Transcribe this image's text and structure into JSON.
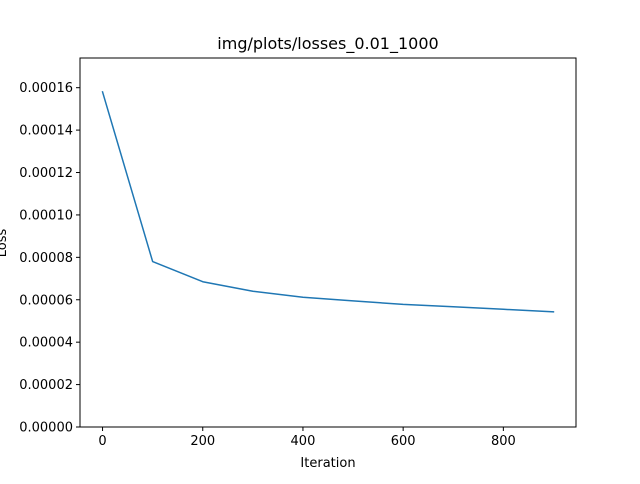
{
  "chart_data": {
    "type": "line",
    "title": "img/plots/losses_0.01_1000",
    "xlabel": "Iteration",
    "ylabel": "Loss",
    "xlim": [
      -45,
      945
    ],
    "ylim": [
      0,
      0.000174
    ],
    "x_ticks": [
      0,
      200,
      400,
      600,
      800
    ],
    "x_tick_labels": [
      "0",
      "200",
      "400",
      "600",
      "800"
    ],
    "y_ticks": [
      0,
      2e-05,
      4e-05,
      6e-05,
      8e-05,
      0.0001,
      0.00012,
      0.00014,
      0.00016
    ],
    "y_tick_labels": [
      "0.00000",
      "0.00002",
      "0.00004",
      "0.00006",
      "0.00008",
      "0.00010",
      "0.00012",
      "0.00014",
      "0.00016"
    ],
    "grid": false,
    "series": [
      {
        "color": "#1f77b4",
        "x": [
          0,
          100,
          200,
          300,
          400,
          500,
          600,
          700,
          800,
          900
        ],
        "y": [
          0.000158,
          7.8e-05,
          6.85e-05,
          6.4e-05,
          6.12e-05,
          5.95e-05,
          5.78e-05,
          5.67e-05,
          5.55e-05,
          5.43e-05
        ]
      }
    ]
  }
}
